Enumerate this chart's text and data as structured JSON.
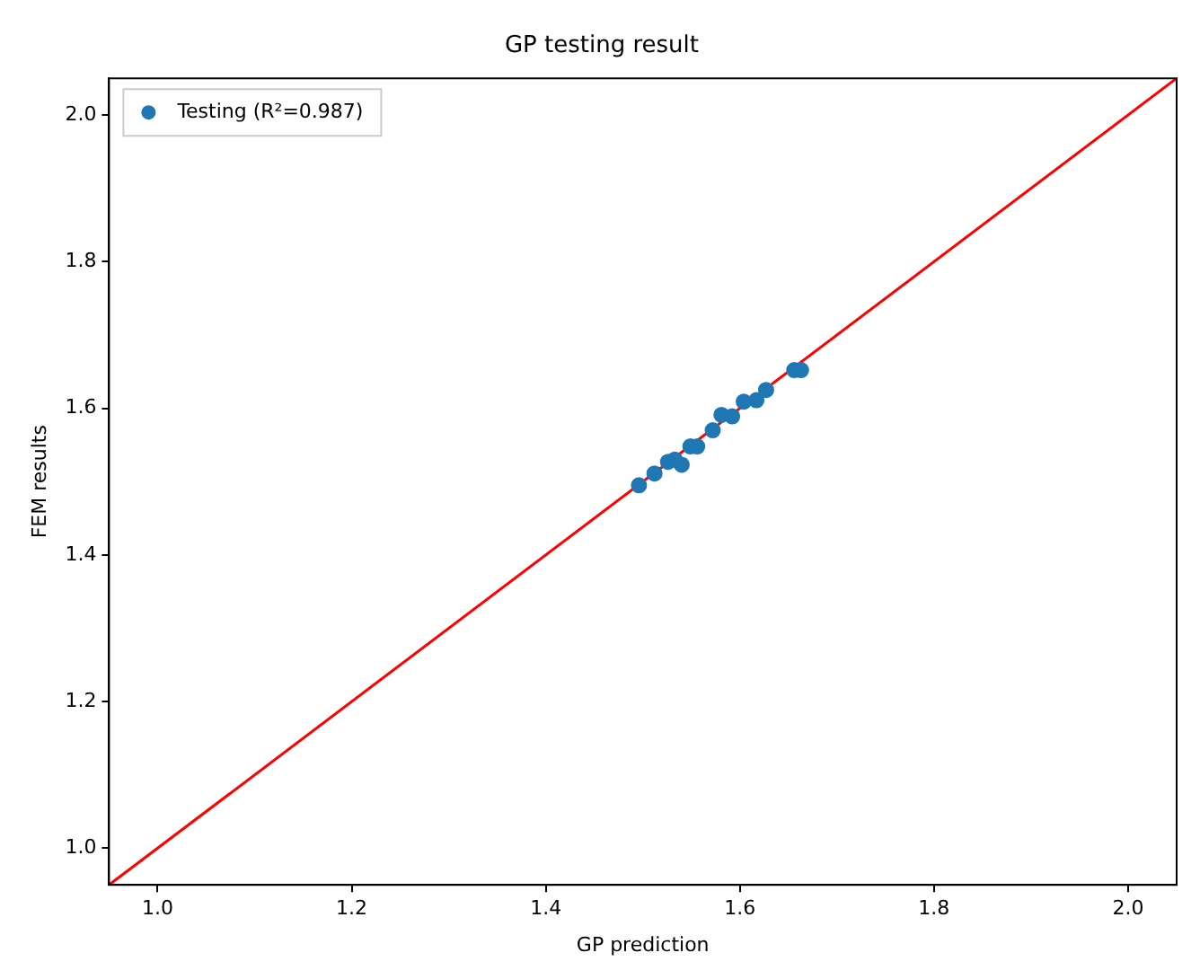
{
  "chart_data": {
    "type": "scatter",
    "title": "GP testing result",
    "xlabel": "GP prediction",
    "ylabel": "FEM results",
    "xlim": [
      0.95,
      2.05
    ],
    "ylim": [
      0.95,
      2.05
    ],
    "xticks": [
      {
        "value": 1,
        "label": "1.0"
      },
      {
        "value": 1.2,
        "label": "1.2"
      },
      {
        "value": 1.4,
        "label": "1.4"
      },
      {
        "value": 1.6,
        "label": "1.6"
      },
      {
        "value": 1.8,
        "label": "1.8"
      },
      {
        "value": 2,
        "label": "2.0"
      }
    ],
    "yticks": [
      {
        "value": 1,
        "label": "1.0"
      },
      {
        "value": 1.2,
        "label": "1.2"
      },
      {
        "value": 1.4,
        "label": "1.4"
      },
      {
        "value": 1.6,
        "label": "1.6"
      },
      {
        "value": 1.8,
        "label": "1.8"
      },
      {
        "value": 2,
        "label": "2.0"
      }
    ],
    "grid": false,
    "legend": "top left",
    "series": [
      {
        "name": "Testing (R²=0.987)",
        "marker": "circle",
        "color": "#1f77b4",
        "x": [
          1.496,
          1.512,
          1.526,
          1.533,
          1.54,
          1.549,
          1.556,
          1.572,
          1.581,
          1.592,
          1.604,
          1.617,
          1.627,
          1.656,
          1.663
        ],
        "values": [
          1.495,
          1.511,
          1.527,
          1.53,
          1.523,
          1.548,
          1.548,
          1.57,
          1.591,
          1.589,
          1.609,
          1.611,
          1.625,
          1.652,
          1.652
        ]
      },
      {
        "type": "line",
        "color": "#ff0000",
        "line_style": "solid",
        "x": [
          0.95,
          2.05
        ],
        "values": [
          0.95,
          2.05
        ]
      }
    ]
  }
}
